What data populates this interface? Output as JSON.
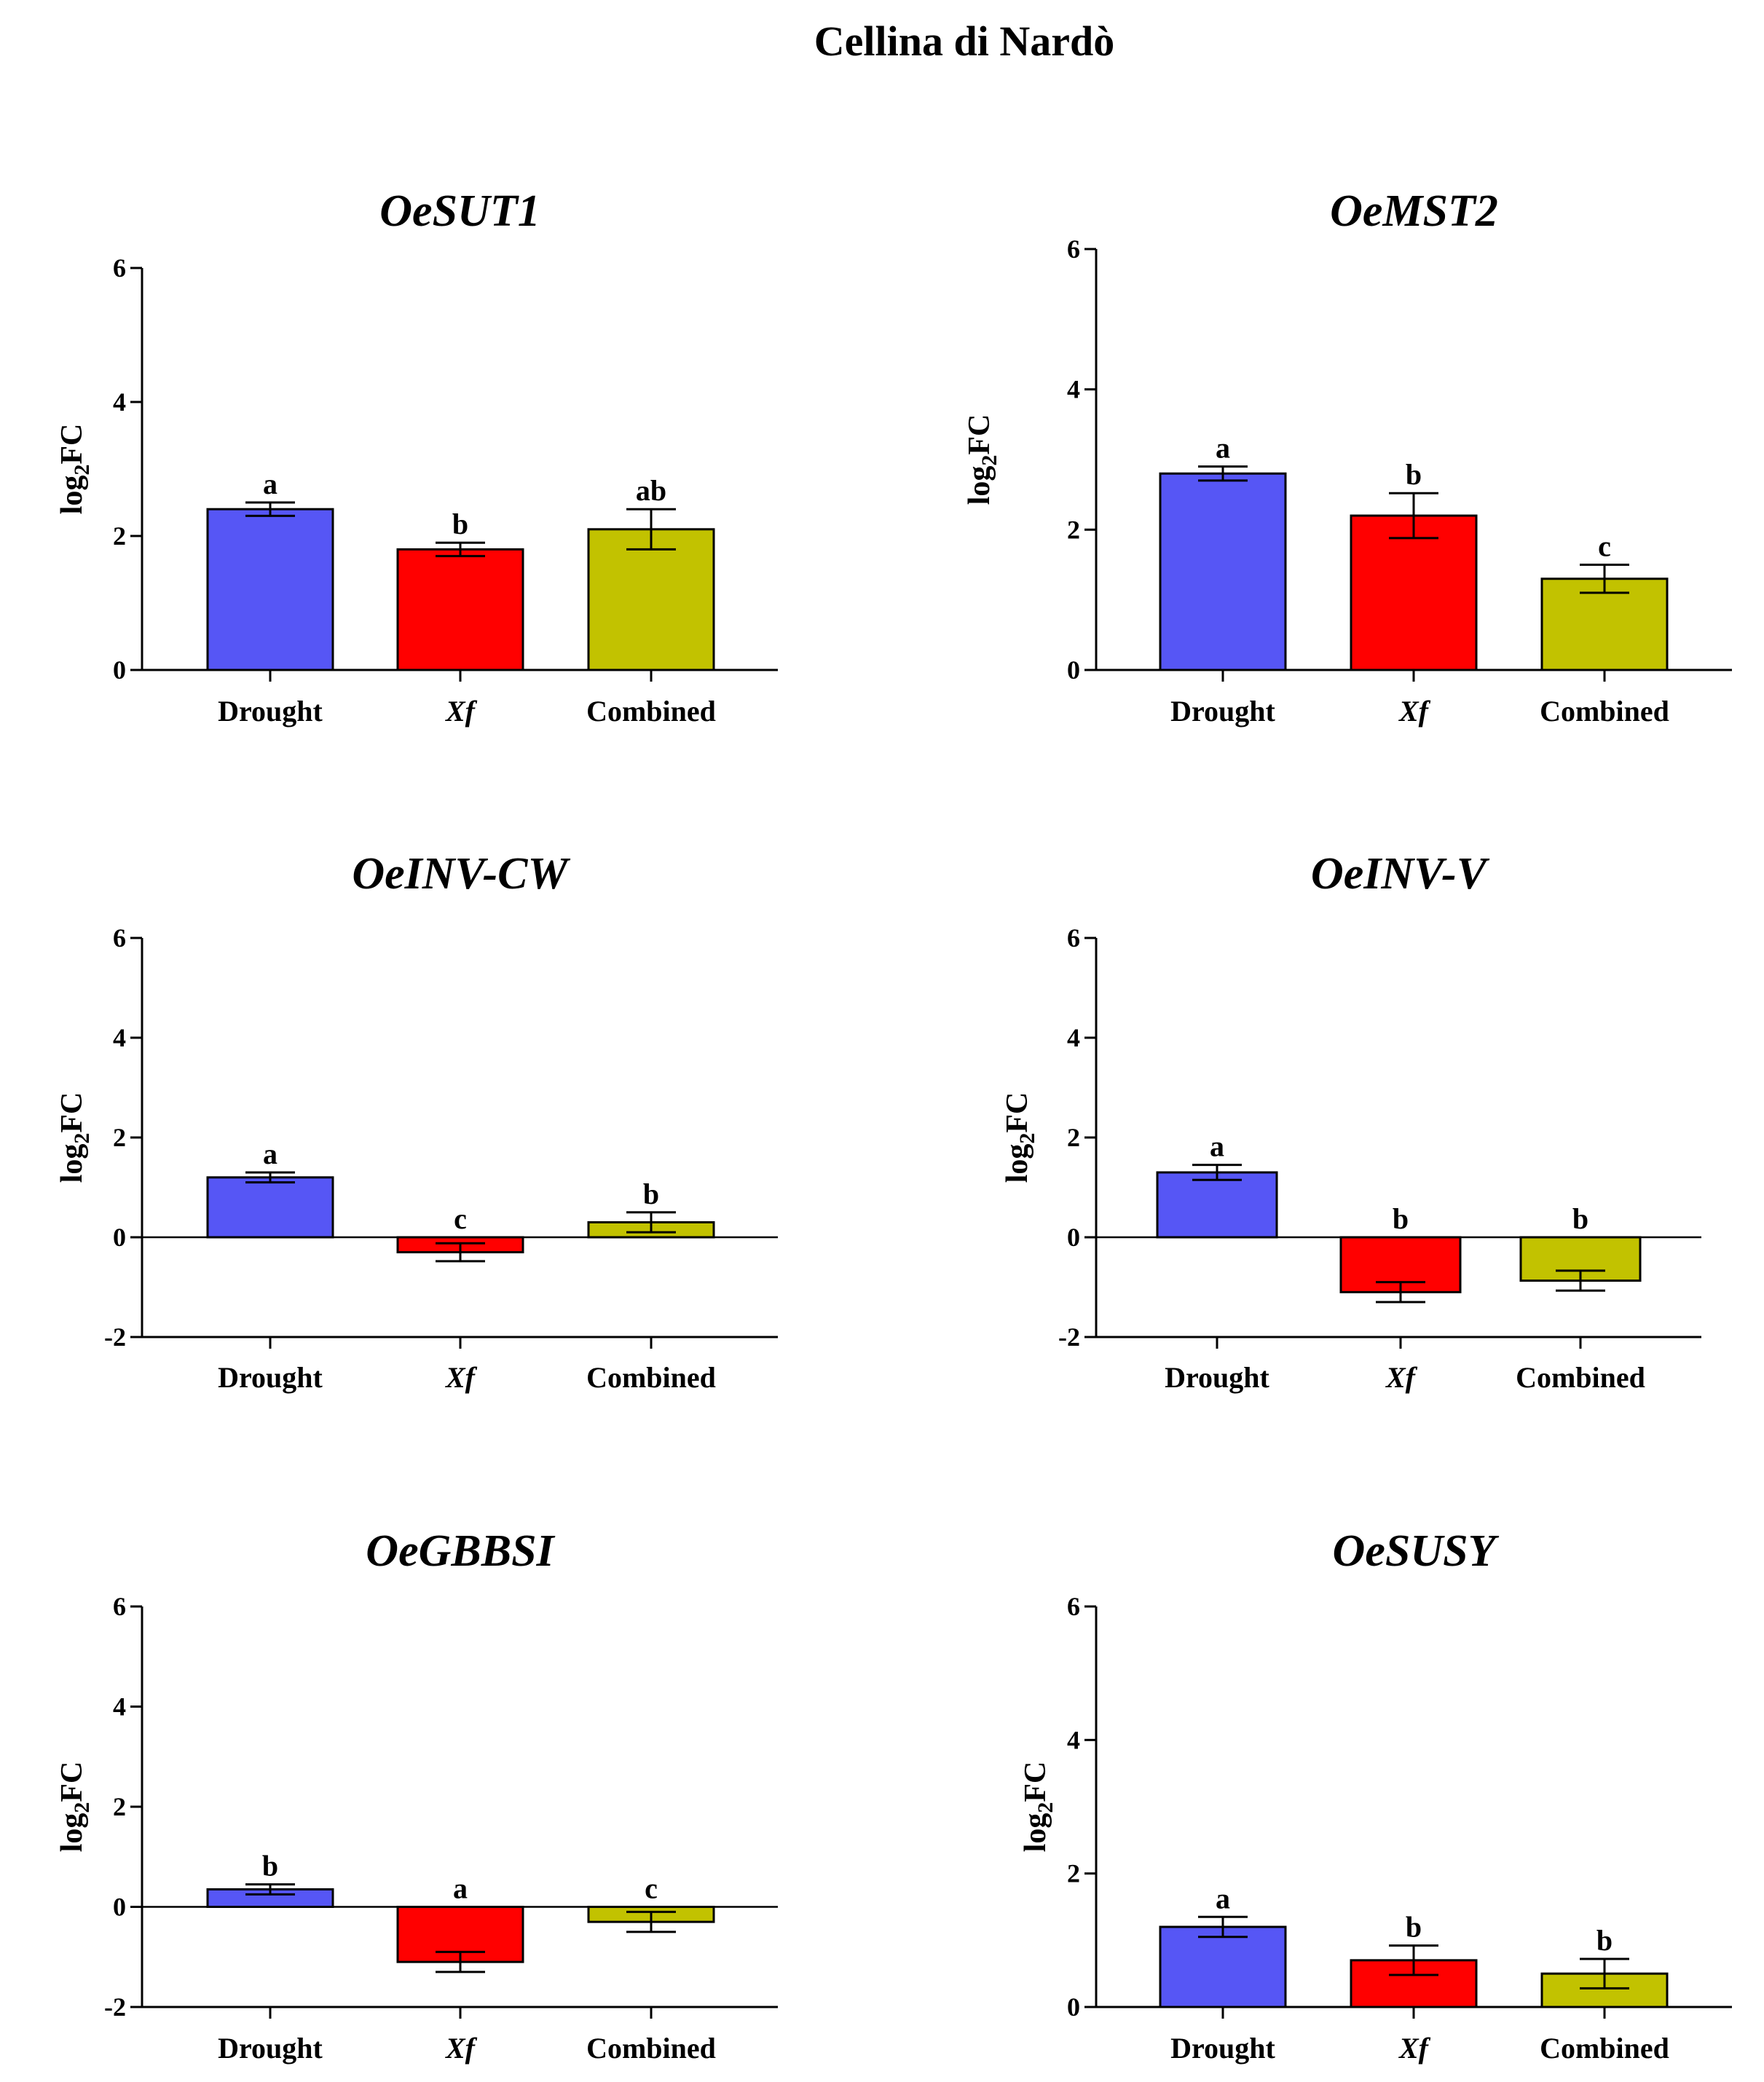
{
  "figure": {
    "title": "Cellina di Nardò",
    "colors": {
      "Drought": "#5656f5",
      "Xf": "#ff0000",
      "Combined": "#c2c200"
    }
  },
  "chart_data": [
    {
      "type": "bar",
      "title": "OeSUT1",
      "ylabel": "log2FC",
      "ylim": [
        0,
        6
      ],
      "yticks": [
        "0",
        "2",
        "4",
        "6"
      ],
      "categories": [
        "Drought",
        "Xf",
        "Combined"
      ],
      "values": [
        2.4,
        1.8,
        2.1
      ],
      "errors": [
        0.1,
        0.1,
        0.3
      ],
      "letters": [
        "a",
        "b",
        "ab"
      ]
    },
    {
      "type": "bar",
      "title": "OeMST2",
      "ylabel": "log2FC",
      "ylim": [
        0,
        6
      ],
      "yticks": [
        "0",
        "2",
        "4",
        "6"
      ],
      "categories": [
        "Drought",
        "Xf",
        "Combined"
      ],
      "values": [
        2.8,
        2.2,
        1.3
      ],
      "errors": [
        0.1,
        0.32,
        0.2
      ],
      "letters": [
        "a",
        "b",
        "c"
      ]
    },
    {
      "type": "bar",
      "title": "OeINV-CW",
      "ylabel": "log2FC",
      "ylim": [
        -2,
        6
      ],
      "yticks": [
        "-2",
        "0",
        "2",
        "4",
        "6"
      ],
      "categories": [
        "Drought",
        "Xf",
        "Combined"
      ],
      "values": [
        1.2,
        -0.3,
        0.3
      ],
      "errors": [
        0.1,
        0.18,
        0.2
      ],
      "letters": [
        "a",
        "c",
        "b"
      ]
    },
    {
      "type": "bar",
      "title": "OeINV-V",
      "ylabel": "log2FC",
      "ylim": [
        -2,
        6
      ],
      "yticks": [
        "-2",
        "0",
        "2",
        "4",
        "6"
      ],
      "categories": [
        "Drought",
        "Xf",
        "Combined"
      ],
      "values": [
        1.3,
        -1.1,
        -0.87
      ],
      "errors": [
        0.15,
        0.2,
        0.2
      ],
      "letters": [
        "a",
        "b",
        "b"
      ]
    },
    {
      "type": "bar",
      "title": "OeGBBSI",
      "ylabel": "log2FC",
      "ylim": [
        -2,
        6
      ],
      "yticks": [
        "-2",
        "0",
        "2",
        "4",
        "6"
      ],
      "categories": [
        "Drought",
        "Xf",
        "Combined"
      ],
      "values": [
        0.35,
        -1.1,
        -0.3
      ],
      "errors": [
        0.1,
        0.2,
        0.2
      ],
      "letters": [
        "b",
        "a",
        "c"
      ]
    },
    {
      "type": "bar",
      "title": "OeSUSY",
      "ylabel": "log2FC",
      "ylim": [
        0,
        6
      ],
      "yticks": [
        "0",
        "2",
        "4",
        "6"
      ],
      "categories": [
        "Drought",
        "Xf",
        "Combined"
      ],
      "values": [
        1.2,
        0.7,
        0.5
      ],
      "errors": [
        0.15,
        0.22,
        0.22
      ],
      "letters": [
        "a",
        "b",
        "b"
      ]
    }
  ]
}
